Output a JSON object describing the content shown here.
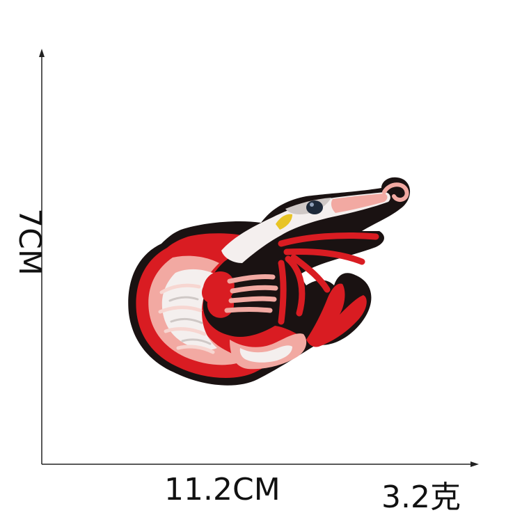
{
  "measurements": {
    "height": "7CM",
    "width": "11.2CM",
    "weight": "3.2克"
  },
  "colors": {
    "background": "#ffffff",
    "axis": "#222222",
    "outline": "#1a1212",
    "red": "#d91c22",
    "pink": "#f2a9a2",
    "light_pink": "#f7d6d1",
    "white": "#f4efee",
    "grey": "#cfc8c6",
    "eye": "#1e2a3a",
    "beak": "#e8c424"
  },
  "icons": [
    "shrimp-patch",
    "axis-arrow-up",
    "axis-arrow-right"
  ]
}
